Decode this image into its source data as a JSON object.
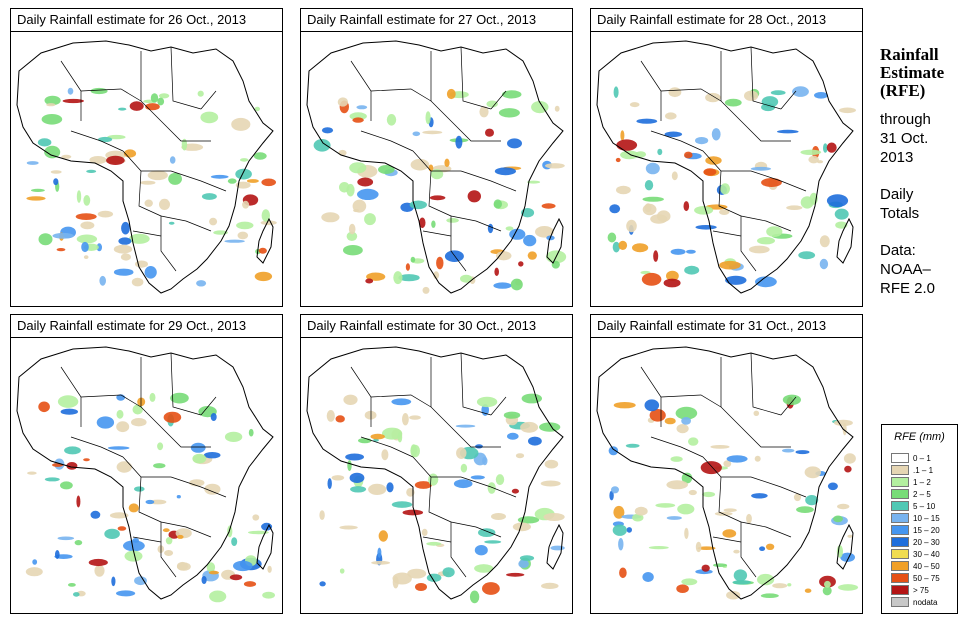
{
  "panels": [
    {
      "title": "Daily Rainfall estimate for  26 Oct., 2013"
    },
    {
      "title": "Daily Rainfall estimate for  27 Oct., 2013"
    },
    {
      "title": "Daily Rainfall estimate for  28 Oct., 2013"
    },
    {
      "title": "Daily Rainfall estimate for  29 Oct., 2013"
    },
    {
      "title": "Daily Rainfall estimate for  30 Oct., 2013"
    },
    {
      "title": "Daily Rainfall estimate for  31 Oct., 2013"
    }
  ],
  "sidebar": {
    "heading_line1": "Rainfall",
    "heading_line2": "Estimate",
    "heading_line3": "(RFE)",
    "through_label": "through",
    "through_date_line1": "31 Oct.",
    "through_date_line2": "2013",
    "totals_line1": "Daily",
    "totals_line2": "Totals",
    "data_label": "Data:",
    "source_line1": "NOAA–",
    "source_line2": "RFE 2.0"
  },
  "legend": {
    "title": "RFE (mm)",
    "items": [
      {
        "label": "0 – 1",
        "color": "#ffffff"
      },
      {
        "label": ".1 – 1",
        "color": "#e6d6b4"
      },
      {
        "label": "1 – 2",
        "color": "#b4f0a0"
      },
      {
        "label": "2 – 5",
        "color": "#78dc78"
      },
      {
        "label": "5 – 10",
        "color": "#50c8b4"
      },
      {
        "label": "10 – 15",
        "color": "#78b4f0"
      },
      {
        "label": "15 – 20",
        "color": "#4696f0"
      },
      {
        "label": "20 – 30",
        "color": "#1e6edc"
      },
      {
        "label": "30 – 40",
        "color": "#f0dc50"
      },
      {
        "label": "40 – 50",
        "color": "#f0a028"
      },
      {
        "label": "50 – 75",
        "color": "#e65014"
      },
      {
        "label": "> 75",
        "color": "#b41414"
      },
      {
        "label": "nodata",
        "color": "#c8c8c8"
      }
    ]
  }
}
